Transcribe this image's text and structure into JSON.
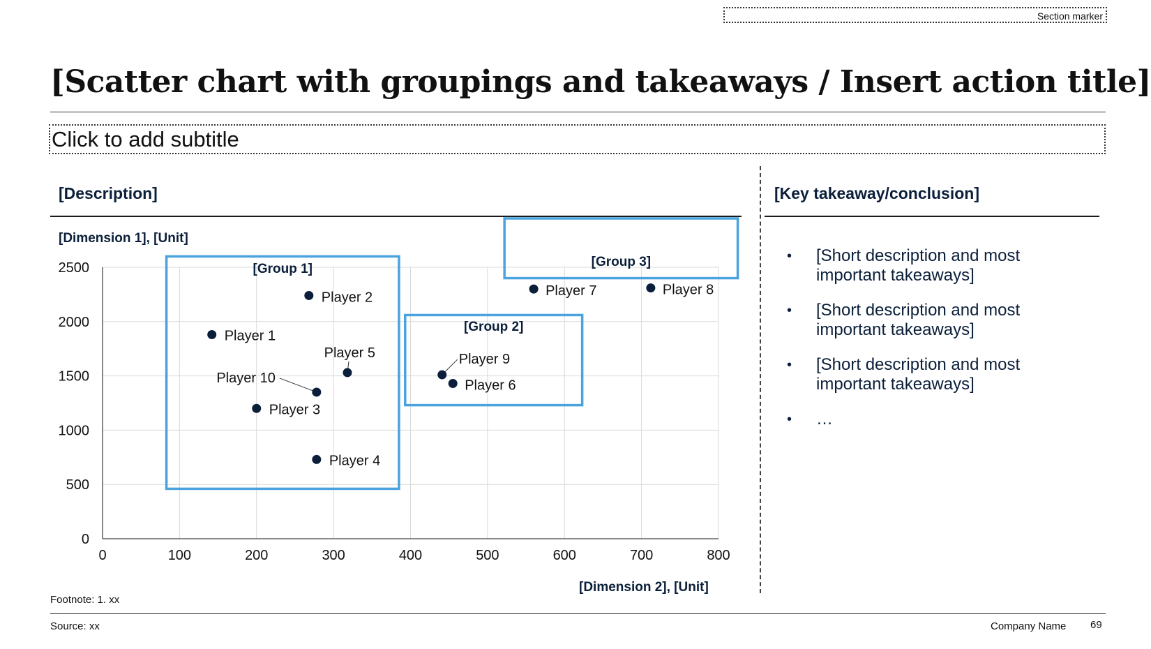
{
  "section_marker": "Section marker",
  "title": "[Scatter chart with groupings and takeaways / Insert action title]",
  "subtitle": "Click to add subtitle",
  "left_heading": "[Description]",
  "right_heading": "[Key takeaway/conclusion]",
  "takeaways": [
    "[Short description and most important takeaways]",
    "[Short description and most important takeaways]",
    "[Short description and most important takeaways]",
    "…"
  ],
  "footnote": "Footnote: 1. xx",
  "source": "Source: xx",
  "company": "Company Name",
  "page_number": "69",
  "colors": {
    "group_box": "#4aa3df",
    "point": "#0b1f3a",
    "grid": "#d9d9d9"
  },
  "chart_data": {
    "type": "scatter",
    "ylabel": "[Dimension 1], [Unit]",
    "xlabel": "[Dimension 2], [Unit]",
    "xlim": [
      0,
      800
    ],
    "ylim": [
      0,
      2500
    ],
    "x_ticks": [
      0,
      100,
      200,
      300,
      400,
      500,
      600,
      700,
      800
    ],
    "y_ticks": [
      0,
      500,
      1000,
      1500,
      2000,
      2500
    ],
    "grid": true,
    "points": [
      {
        "label": "Player 1",
        "x": 142,
        "y": 1880
      },
      {
        "label": "Player 2",
        "x": 268,
        "y": 2240
      },
      {
        "label": "Player 3",
        "x": 200,
        "y": 1200
      },
      {
        "label": "Player 4",
        "x": 278,
        "y": 730
      },
      {
        "label": "Player 5",
        "x": 318,
        "y": 1530
      },
      {
        "label": "Player 6",
        "x": 455,
        "y": 1430
      },
      {
        "label": "Player 7",
        "x": 560,
        "y": 2300
      },
      {
        "label": "Player 8",
        "x": 712,
        "y": 2310
      },
      {
        "label": "Player 9",
        "x": 441,
        "y": 1510
      },
      {
        "label": "Player 10",
        "x": 278,
        "y": 1350
      }
    ],
    "groups": [
      {
        "label": "[Group 1]",
        "x_range": [
          83,
          385
        ],
        "y_range": [
          460,
          2600
        ]
      },
      {
        "label": "[Group 2]",
        "x_range": [
          393,
          623
        ],
        "y_range": [
          1230,
          2060
        ]
      },
      {
        "label": "[Group 3]",
        "x_range": [
          522,
          825
        ],
        "y_range": [
          2400,
          2950
        ]
      }
    ]
  }
}
